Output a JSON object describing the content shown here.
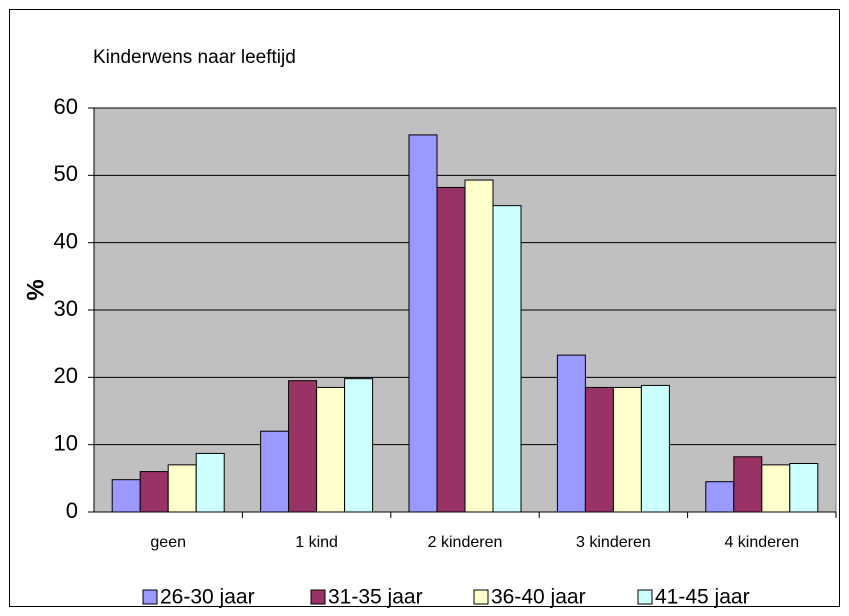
{
  "chart_data": {
    "type": "bar",
    "title": "Kinderwens naar leeftijd",
    "y_label": "%",
    "categories": [
      "geen",
      "1 kind",
      "2 kinderen",
      "3 kinderen",
      "4 kinderen"
    ],
    "series": [
      {
        "name": "26-30 jaar",
        "color": "#9999ff",
        "values": [
          4.8,
          12,
          56,
          23.3,
          4.5
        ]
      },
      {
        "name": "31-35 jaar",
        "color": "#993366",
        "values": [
          6,
          19.5,
          48.2,
          18.5,
          8.2
        ]
      },
      {
        "name": "36-40 jaar",
        "color": "#ffffcc",
        "values": [
          7,
          18.5,
          49.3,
          18.5,
          7
        ]
      },
      {
        "name": "41-45 jaar",
        "color": "#ccffff",
        "values": [
          8.7,
          19.8,
          45.5,
          18.8,
          7.2
        ]
      }
    ],
    "ylim": [
      0,
      60
    ],
    "yticks": [
      0,
      10,
      20,
      30,
      40,
      50,
      60
    ],
    "grid": true,
    "legend": "bottom"
  }
}
